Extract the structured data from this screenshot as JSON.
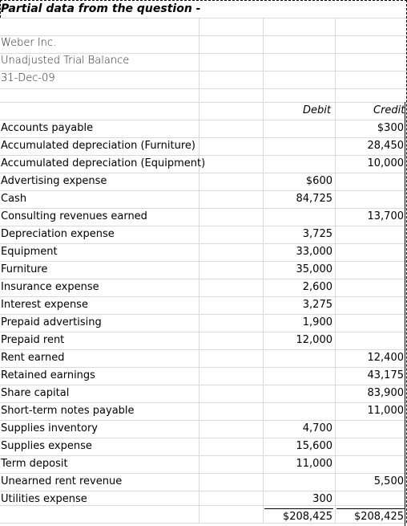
{
  "title": "Partial data from the question -",
  "company": "Weber Inc.",
  "report": "Unadjusted Trial Balance",
  "date": "31-Dec-09",
  "headers": {
    "debit": "Debit",
    "credit": "Credit"
  },
  "accounts": [
    {
      "name": "Accounts payable",
      "debit": "",
      "credit": "$300"
    },
    {
      "name": "Accumulated depreciation (Furniture)",
      "debit": "",
      "credit": "28,450"
    },
    {
      "name": "Accumulated depreciation (Equipment)",
      "debit": "",
      "credit": "10,000"
    },
    {
      "name": "Advertising expense",
      "debit": "$600",
      "credit": ""
    },
    {
      "name": "Cash",
      "debit": "84,725",
      "credit": ""
    },
    {
      "name": "Consulting revenues earned",
      "debit": "",
      "credit": "13,700"
    },
    {
      "name": "Depreciation expense",
      "debit": "3,725",
      "credit": ""
    },
    {
      "name": "Equipment",
      "debit": "33,000",
      "credit": ""
    },
    {
      "name": "Furniture",
      "debit": "35,000",
      "credit": ""
    },
    {
      "name": "Insurance expense",
      "debit": "2,600",
      "credit": ""
    },
    {
      "name": "Interest expense",
      "debit": "3,275",
      "credit": ""
    },
    {
      "name": "Prepaid advertising",
      "debit": "1,900",
      "credit": ""
    },
    {
      "name": "Prepaid rent",
      "debit": "12,000",
      "credit": ""
    },
    {
      "name": "Rent earned",
      "debit": "",
      "credit": "12,400"
    },
    {
      "name": "Retained earnings",
      "debit": "",
      "credit": "43,175"
    },
    {
      "name": "Share capital",
      "debit": "",
      "credit": "83,900"
    },
    {
      "name": "Short-term notes payable",
      "debit": "",
      "credit": "11,000"
    },
    {
      "name": "Supplies inventory",
      "debit": "4,700",
      "credit": ""
    },
    {
      "name": "Supplies expense",
      "debit": "15,600",
      "credit": ""
    },
    {
      "name": "Term deposit",
      "debit": "11,000",
      "credit": ""
    },
    {
      "name": "Unearned rent revenue",
      "debit": "",
      "credit": "5,500"
    },
    {
      "name": "Utilities expense",
      "debit": "300",
      "credit": ""
    }
  ],
  "totals": {
    "debit": "$208,425",
    "credit": "$208,425"
  }
}
